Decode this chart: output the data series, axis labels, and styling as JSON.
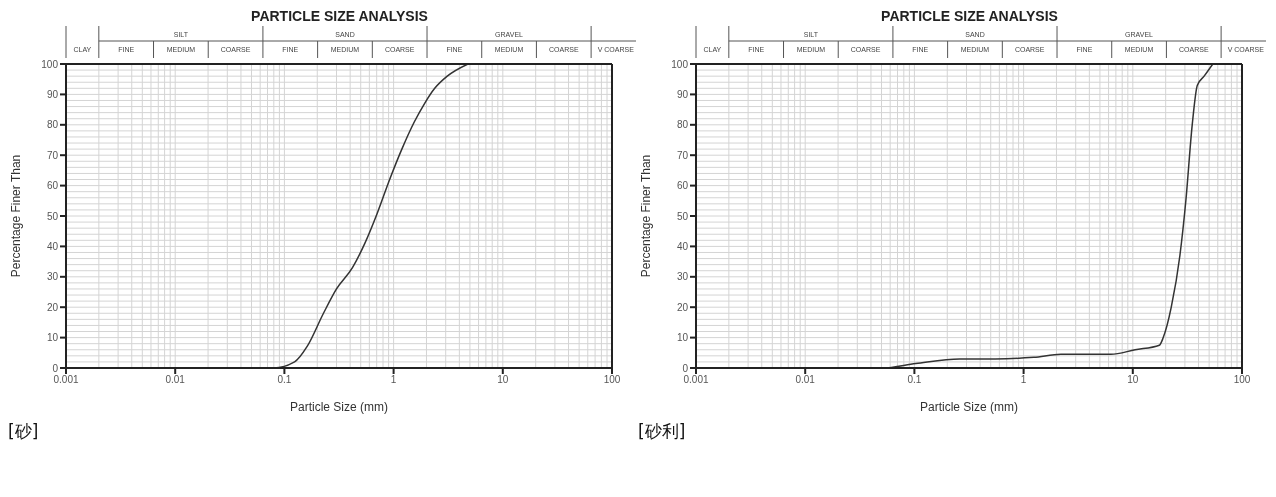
{
  "chart_data": [
    {
      "type": "line",
      "title": "PARTICLE SIZE ANALYSIS",
      "subtitle": "[砂]",
      "xlabel": "Particle Size (mm)",
      "ylabel": "Percentage Finer Than",
      "series": [
        {
          "color": "#333333",
          "x": [
            0.001,
            0.08,
            0.124,
            0.161,
            0.228,
            0.3,
            0.42,
            0.545,
            0.71,
            0.92,
            1.19,
            1.55,
            1.92,
            2.38,
            3.1,
            4.8
          ],
          "values": [
            0,
            0,
            2,
            7,
            18,
            26,
            33,
            41,
            51,
            62,
            72,
            81,
            87,
            92,
            96,
            100
          ]
        }
      ],
      "xlim": [
        0.001,
        100
      ],
      "ylim": [
        0,
        100
      ],
      "xticks": [
        0.001,
        0.01,
        0.1,
        1,
        10,
        100
      ],
      "yticks": [
        0,
        10,
        20,
        30,
        40,
        50,
        60,
        70,
        80,
        90,
        100
      ],
      "log": "x",
      "grid": true,
      "annotations": [
        "CLAY",
        "SILT",
        "FINE",
        "MEDIUM",
        "COARSE",
        "SAND",
        "FINE",
        "MEDIUM",
        "COARSE",
        "GRAVEL",
        "FINE",
        "MEDIUM",
        "COARSE",
        "V COARSE"
      ]
    },
    {
      "type": "line",
      "title": "PARTICLE SIZE ANALYSIS",
      "subtitle": "[砂利]",
      "xlabel": "Particle Size (mm)",
      "ylabel": "Percentage Finer Than",
      "series": [
        {
          "color": "#333333",
          "x": [
            0.001,
            0.051,
            0.103,
            0.26,
            0.55,
            1.24,
            2.2,
            6.3,
            10.5,
            17.5,
            19,
            22.5,
            27,
            30.6,
            35,
            39,
            45,
            54
          ],
          "values": [
            0,
            0,
            1.5,
            3,
            3,
            3.5,
            4.5,
            4.5,
            6,
            7.5,
            10,
            20,
            37,
            55,
            80,
            93,
            96,
            100
          ]
        }
      ],
      "xlim": [
        0.001,
        100
      ],
      "ylim": [
        0,
        100
      ],
      "xticks": [
        0.001,
        0.01,
        0.1,
        1,
        10,
        100
      ],
      "yticks": [
        0,
        10,
        20,
        30,
        40,
        50,
        60,
        70,
        80,
        90,
        100
      ],
      "log": "x",
      "grid": true,
      "annotations": [
        "CLAY",
        "SILT",
        "FINE",
        "MEDIUM",
        "COARSE",
        "SAND",
        "FINE",
        "MEDIUM",
        "COARSE",
        "GRAVEL",
        "FINE",
        "MEDIUM",
        "COARSE",
        "V COARSE"
      ]
    }
  ]
}
